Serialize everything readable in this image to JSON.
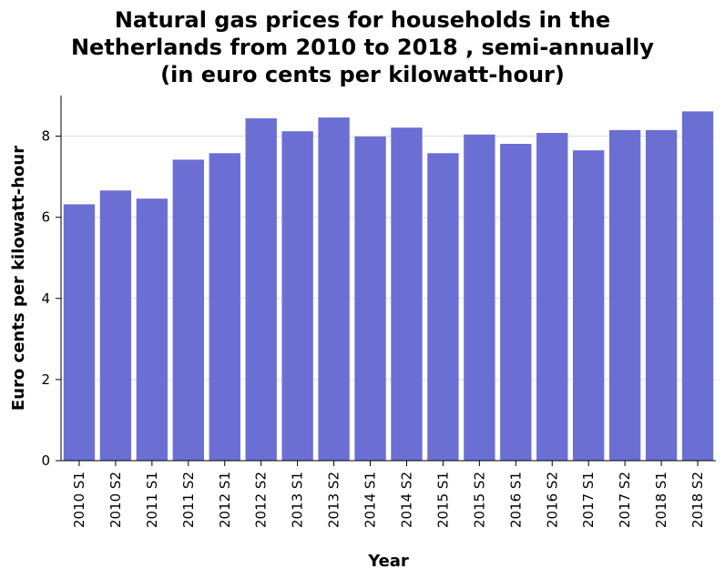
{
  "chart_data": {
    "type": "bar",
    "title": "Natural gas prices for households in the Netherlands from 2010 to 2018 , semi-annually (in euro cents per kilowatt-hour)",
    "title_lines": [
      "Natural gas prices for households in the",
      "Netherlands from 2010 to 2018 , semi-annually",
      "(in euro cents per kilowatt-hour)"
    ],
    "xlabel": "Year",
    "ylabel": "Euro cents per kilowatt-hour",
    "ylim": [
      0,
      9
    ],
    "yticks": [
      0,
      2,
      4,
      6,
      8
    ],
    "grid": true,
    "bar_color": "#6b6fd4",
    "categories": [
      "2010 S1",
      "2010 S2",
      "2011 S1",
      "2011 S2",
      "2012 S1",
      "2012 S2",
      "2013 S1",
      "2013 S2",
      "2014 S1",
      "2014 S2",
      "2015 S1",
      "2015 S2",
      "2016 S1",
      "2016 S2",
      "2017 S1",
      "2017 S2",
      "2018 S1",
      "2018 S2"
    ],
    "values": [
      6.32,
      6.66,
      6.46,
      7.42,
      7.58,
      8.44,
      8.12,
      8.46,
      7.99,
      8.21,
      7.58,
      8.04,
      7.81,
      8.08,
      7.65,
      8.15,
      8.15,
      8.61
    ]
  }
}
